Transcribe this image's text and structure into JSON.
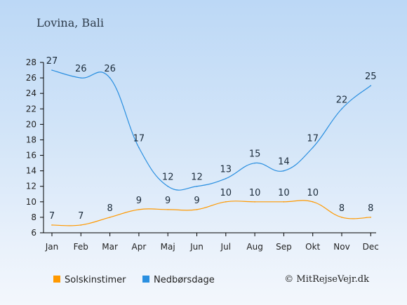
{
  "chart_data": {
    "type": "line",
    "title": "Lovina, Bali",
    "categories": [
      "Jan",
      "Feb",
      "Mar",
      "Apr",
      "Maj",
      "Jun",
      "Jul",
      "Aug",
      "Sep",
      "Okt",
      "Nov",
      "Dec"
    ],
    "series": [
      {
        "name": "Solskinstimer",
        "values": [
          7,
          7,
          8,
          9,
          9,
          9,
          10,
          10,
          10,
          10,
          8,
          8
        ],
        "color": "#ff9900"
      },
      {
        "name": "Nedbørsdage",
        "values": [
          27,
          26,
          26,
          17,
          12,
          12,
          13,
          15,
          14,
          17,
          22,
          25
        ],
        "color": "#2a8fe0"
      }
    ],
    "yticks": [
      6,
      8,
      10,
      12,
      14,
      16,
      18,
      20,
      22,
      24,
      26,
      28
    ],
    "ylim": [
      6,
      28
    ],
    "grid": false,
    "legend_position": "bottom-left"
  },
  "credit": "© MitRejseVejr.dk"
}
